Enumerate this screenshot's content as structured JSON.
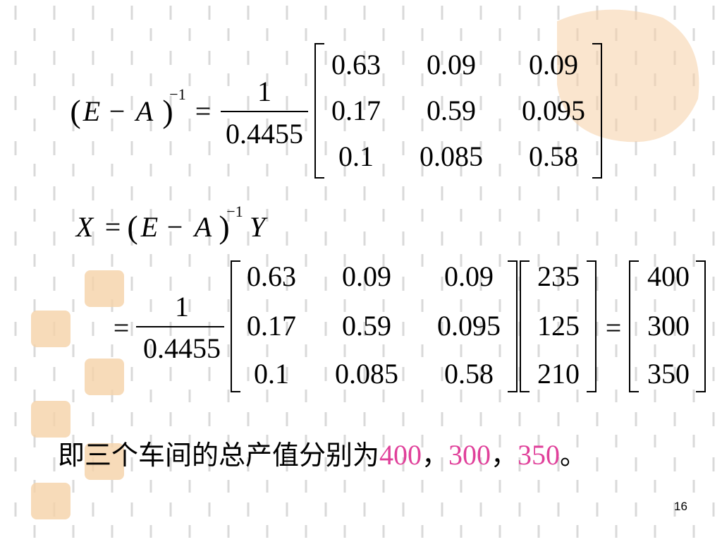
{
  "formula1": {
    "lhs": [
      "(",
      "E",
      "−",
      "A",
      ")"
    ],
    "exponent": "−1",
    "equals": "=",
    "fraction": {
      "numerator": "1",
      "denominator": "0.4455"
    },
    "matrix": [
      [
        "0.63",
        "0.09",
        "0.09"
      ],
      [
        "0.17",
        "0.59",
        "0.095"
      ],
      [
        "0.1",
        "0.085",
        "0.58"
      ]
    ]
  },
  "formula2": {
    "parts": [
      "X",
      "=",
      "(",
      "E",
      "−",
      "A",
      ")"
    ],
    "exponent": "−1",
    "tail": "Y"
  },
  "formula3": {
    "equals": "=",
    "fraction": {
      "numerator": "1",
      "denominator": "0.4455"
    },
    "matrix": [
      [
        "0.63",
        "0.09",
        "0.09"
      ],
      [
        "0.17",
        "0.59",
        "0.095"
      ],
      [
        "0.1",
        "0.085",
        "0.58"
      ]
    ],
    "vector": [
      "235",
      "125",
      "210"
    ],
    "equals2": "=",
    "result": [
      "400",
      "300",
      "350"
    ]
  },
  "conclusion": {
    "text": "即三个车间的总产值分别为",
    "values": [
      "400",
      "300",
      "350"
    ],
    "separators": [
      "，",
      "，"
    ],
    "end": "。"
  },
  "page_number": "16"
}
